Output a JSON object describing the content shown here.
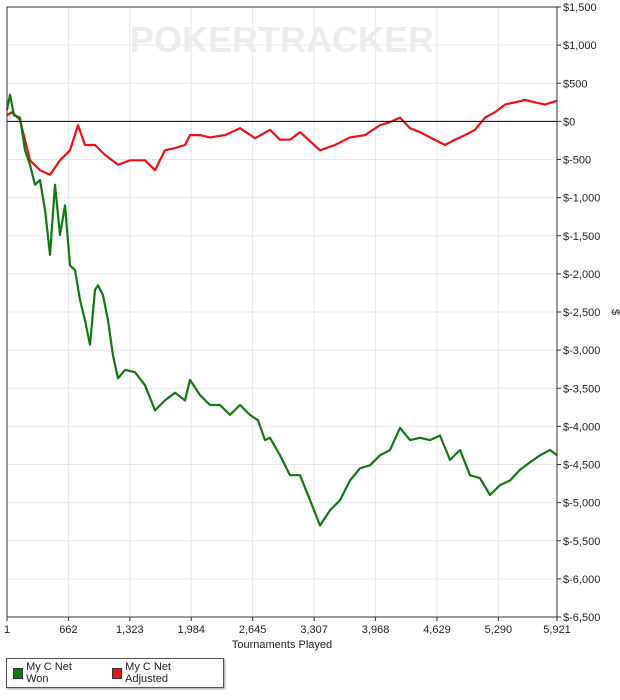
{
  "watermark": "POKERTRACKER",
  "colors": {
    "net_won": "#0f7a10",
    "net_adjusted": "#ee1111",
    "grid": "#e6e6ee",
    "zero_line": "#000000",
    "watermark": "#ececec"
  },
  "chart_data": {
    "type": "line",
    "title": "",
    "xlabel": "Tournaments Played",
    "ylabel": "$",
    "xlim": [
      1,
      5921
    ],
    "ylim": [
      -6500,
      1500
    ],
    "x_ticks": [
      1,
      662,
      1323,
      1984,
      2645,
      3307,
      3968,
      4629,
      5290,
      5921
    ],
    "x_tick_labels": [
      "1",
      "662",
      "1,323",
      "1,984",
      "2,645",
      "3,307",
      "3,968",
      "4,629",
      "5,290",
      "5,921"
    ],
    "y_ticks": [
      1500,
      1000,
      500,
      0,
      -500,
      -1000,
      -1500,
      -2000,
      -2500,
      -3000,
      -3500,
      -4000,
      -4500,
      -5000,
      -5500,
      -6000,
      -6500
    ],
    "y_tick_labels": [
      "$1,500",
      "$1,000",
      "$500",
      "$0",
      "$-500",
      "$-1,000",
      "$-1,500",
      "$-2,000",
      "$-2,500",
      "$-3,000",
      "$-3,500",
      "$-4,000",
      "$-4,500",
      "$-5,000",
      "$-5,500",
      "$-6,000",
      "$-6,500"
    ],
    "y_axis_side": "right",
    "grid": true,
    "legend_position": "bottom-left",
    "series": [
      {
        "name": "My C Net Won",
        "color": "#0f7a10",
        "x": [
          1,
          33,
          76,
          141,
          195,
          249,
          302,
          356,
          410,
          464,
          518,
          571,
          625,
          679,
          733,
          787,
          841,
          894,
          948,
          981,
          1034,
          1088,
          1142,
          1196,
          1271,
          1379,
          1486,
          1594,
          1702,
          1809,
          1917,
          1971,
          2078,
          2186,
          2294,
          2401,
          2509,
          2617,
          2703,
          2778,
          2832,
          2940,
          3047,
          3155,
          3263,
          3370,
          3478,
          3585,
          3693,
          3801,
          3908,
          4016,
          4123,
          4231,
          4339,
          4446,
          4554,
          4662,
          4769,
          4877,
          4985,
          5092,
          5200,
          5308,
          5415,
          5523,
          5631,
          5738,
          5846,
          5921
        ],
        "y": [
          150,
          350,
          80,
          50,
          -380,
          -570,
          -830,
          -770,
          -1160,
          -1750,
          -830,
          -1490,
          -1100,
          -1890,
          -1950,
          -2340,
          -2610,
          -2930,
          -2210,
          -2150,
          -2280,
          -2610,
          -3070,
          -3370,
          -3260,
          -3290,
          -3460,
          -3790,
          -3660,
          -3560,
          -3660,
          -3390,
          -3590,
          -3720,
          -3720,
          -3850,
          -3720,
          -3850,
          -3920,
          -4180,
          -4150,
          -4380,
          -4640,
          -4640,
          -4970,
          -5300,
          -5100,
          -4970,
          -4710,
          -4550,
          -4510,
          -4380,
          -4310,
          -4020,
          -4180,
          -4150,
          -4180,
          -4120,
          -4440,
          -4310,
          -4640,
          -4680,
          -4900,
          -4770,
          -4710,
          -4570,
          -4470,
          -4380,
          -4310,
          -4380
        ]
      },
      {
        "name": "My C Net Adjusted",
        "color": "#ee1111",
        "x": [
          1,
          55,
          141,
          249,
          356,
          464,
          571,
          679,
          765,
          841,
          948,
          1056,
          1196,
          1325,
          1486,
          1594,
          1702,
          1809,
          1917,
          1971,
          2078,
          2186,
          2347,
          2509,
          2670,
          2832,
          2940,
          3047,
          3155,
          3370,
          3532,
          3693,
          3855,
          4016,
          4123,
          4231,
          4339,
          4446,
          4554,
          4715,
          4823,
          4931,
          5038,
          5146,
          5254,
          5361,
          5469,
          5577,
          5684,
          5792,
          5921
        ],
        "y": [
          80,
          120,
          20,
          -510,
          -640,
          -700,
          -510,
          -380,
          -50,
          -310,
          -310,
          -440,
          -570,
          -510,
          -510,
          -640,
          -380,
          -350,
          -310,
          -180,
          -180,
          -210,
          -180,
          -90,
          -220,
          -110,
          -240,
          -240,
          -140,
          -380,
          -310,
          -210,
          -180,
          -50,
          -10,
          50,
          -90,
          -140,
          -210,
          -310,
          -240,
          -180,
          -110,
          50,
          120,
          220,
          250,
          280,
          250,
          220,
          270
        ]
      }
    ]
  }
}
